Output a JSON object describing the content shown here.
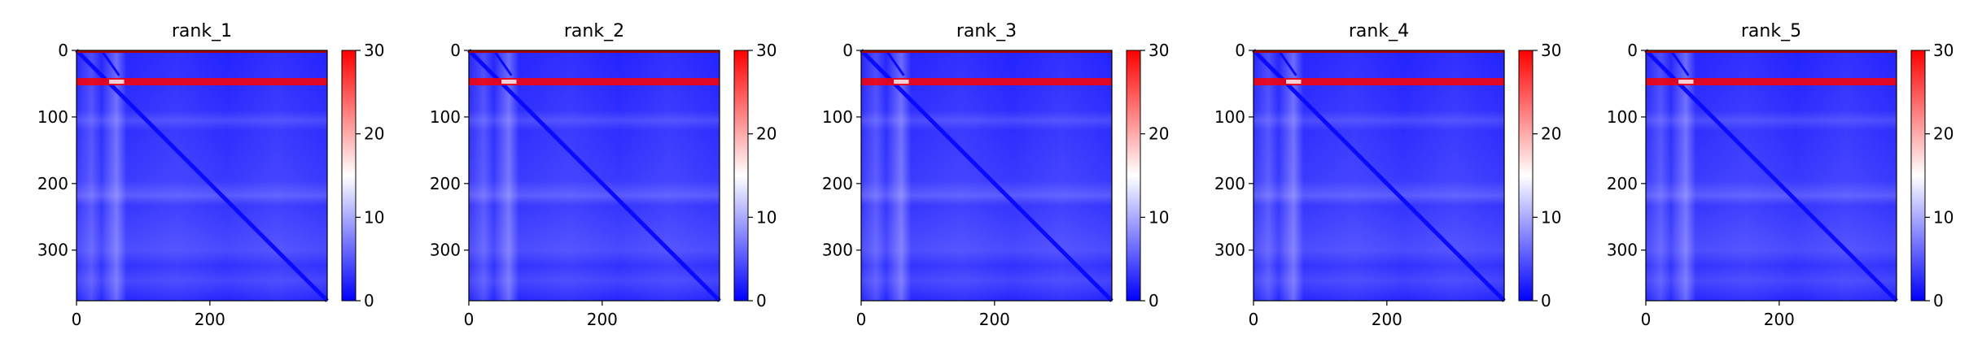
{
  "chart_data": [
    {
      "type": "heatmap",
      "title": "rank_1",
      "xlim": [
        0,
        376
      ],
      "ylim": [
        376,
        0
      ],
      "x_ticks": [
        0,
        200
      ],
      "y_ticks": [
        0,
        100,
        200,
        300
      ],
      "colorbar": {
        "range": [
          0,
          30
        ],
        "ticks": [
          0,
          10,
          20,
          30
        ],
        "colormap": "bwr"
      }
    },
    {
      "type": "heatmap",
      "title": "rank_2",
      "xlim": [
        0,
        376
      ],
      "ylim": [
        376,
        0
      ],
      "x_ticks": [
        0,
        200
      ],
      "y_ticks": [
        0,
        100,
        200,
        300
      ],
      "colorbar": {
        "range": [
          0,
          30
        ],
        "ticks": [
          0,
          10,
          20,
          30
        ],
        "colormap": "bwr"
      }
    },
    {
      "type": "heatmap",
      "title": "rank_3",
      "xlim": [
        0,
        376
      ],
      "ylim": [
        376,
        0
      ],
      "x_ticks": [
        0,
        200
      ],
      "y_ticks": [
        0,
        100,
        200,
        300
      ],
      "colorbar": {
        "range": [
          0,
          30
        ],
        "ticks": [
          0,
          10,
          20,
          30
        ],
        "colormap": "bwr"
      }
    },
    {
      "type": "heatmap",
      "title": "rank_4",
      "xlim": [
        0,
        376
      ],
      "ylim": [
        376,
        0
      ],
      "x_ticks": [
        0,
        200
      ],
      "y_ticks": [
        0,
        100,
        200,
        300
      ],
      "colorbar": {
        "range": [
          0,
          30
        ],
        "ticks": [
          0,
          10,
          20,
          30
        ],
        "colormap": "bwr"
      }
    },
    {
      "type": "heatmap",
      "title": "rank_5",
      "xlim": [
        0,
        376
      ],
      "ylim": [
        376,
        0
      ],
      "x_ticks": [
        0,
        200
      ],
      "y_ticks": [
        0,
        100,
        200,
        300
      ],
      "colorbar": {
        "range": [
          0,
          30
        ],
        "ticks": [
          0,
          10,
          20,
          30
        ],
        "colormap": "bwr"
      }
    }
  ],
  "colors": {
    "low": "#0000ff",
    "mid": "#ffffff",
    "high": "#ff0000"
  }
}
